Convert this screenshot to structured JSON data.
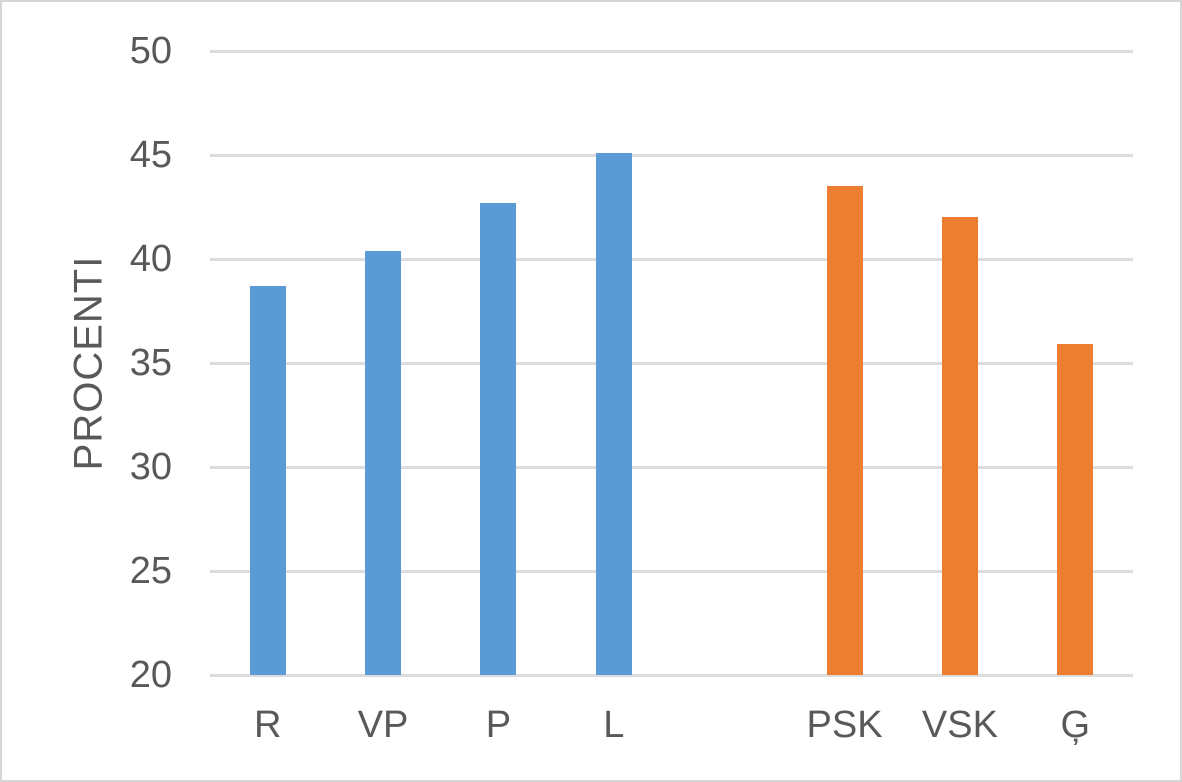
{
  "chart_data": {
    "type": "bar",
    "title": "",
    "xlabel": "",
    "ylabel": "PROCENTI",
    "ylim": [
      20,
      50
    ],
    "yticks": [
      20,
      25,
      30,
      35,
      40,
      45,
      50
    ],
    "grid": true,
    "legend": false,
    "categories": [
      "R",
      "VP",
      "P",
      "L",
      "",
      "PSK",
      "VSK",
      "Ģ"
    ],
    "values": [
      38.7,
      40.4,
      42.7,
      45.1,
      null,
      43.5,
      42.0,
      35.9
    ],
    "bar_colors": [
      "#5B9BD5",
      "#5B9BD5",
      "#5B9BD5",
      "#5B9BD5",
      null,
      "#ED7D31",
      "#ED7D31",
      "#ED7D31"
    ]
  },
  "colors": {
    "series_blue": "#5B9BD5",
    "series_orange": "#ED7D31",
    "axis_text": "#595959",
    "gridline": "#DCDCDC",
    "frame_border": "#D6D6D6"
  }
}
